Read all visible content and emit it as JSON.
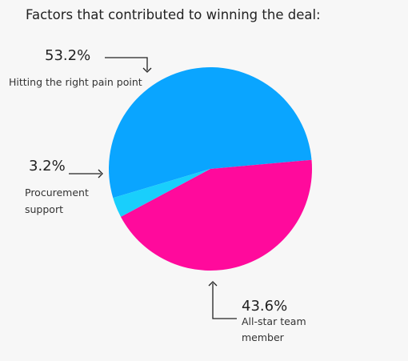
{
  "chart_data": {
    "type": "pie",
    "title": "Factors that contributed to winning the deal:",
    "slices": [
      {
        "label_lines": [
          "Hitting the right pain point"
        ],
        "value": 53.2,
        "value_label": "53.2%",
        "color": "#0aa5ff"
      },
      {
        "label_lines": [
          "All-star team",
          "member"
        ],
        "value": 43.6,
        "value_label": "43.6%",
        "color": "#ff0a9c"
      },
      {
        "label_lines": [
          "Procurement",
          "support"
        ],
        "value": 3.2,
        "value_label": "3.2%",
        "color": "#19cffc"
      }
    ]
  }
}
